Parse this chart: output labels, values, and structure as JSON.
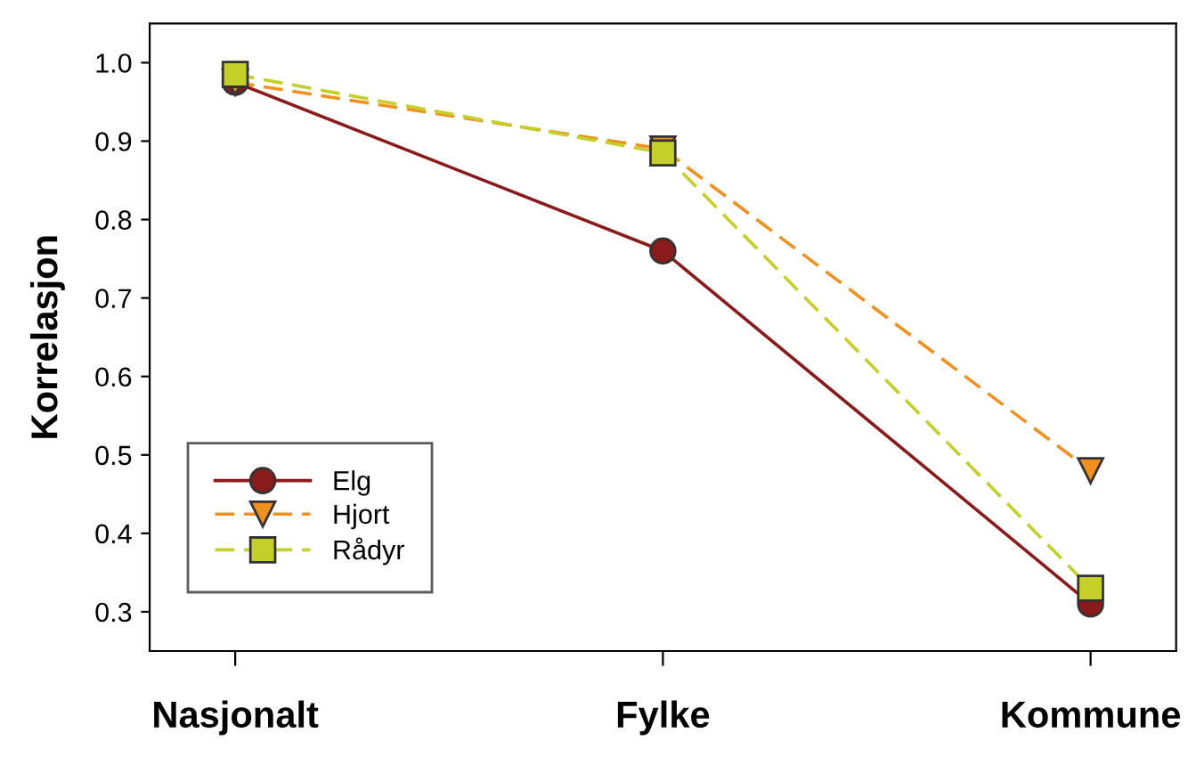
{
  "chart_data": {
    "type": "line",
    "ylabel": "Korrelasjon",
    "categories": [
      "Nasjonalt",
      "Fylke",
      "Kommune"
    ],
    "series": [
      {
        "name": "Elg",
        "color": "#8b1a1a",
        "values": [
          0.975,
          0.76,
          0.31
        ],
        "marker": "circle",
        "line_style": "solid"
      },
      {
        "name": "Hjort",
        "color": "#f0901e",
        "values": [
          0.975,
          0.89,
          0.48
        ],
        "marker": "triangle",
        "line_style": "dashed"
      },
      {
        "name": "Rådyr",
        "color": "#c5cf2a",
        "values": [
          0.985,
          0.885,
          0.33
        ],
        "marker": "square",
        "line_style": "dashed"
      }
    ],
    "ylim": [
      0.25,
      1.05
    ],
    "yticks": [
      {
        "value": 0.3,
        "label": "0.3"
      },
      {
        "value": 0.4,
        "label": "0.4"
      },
      {
        "value": 0.5,
        "label": "0.5"
      },
      {
        "value": 0.6,
        "label": "0.6"
      },
      {
        "value": 0.7,
        "label": "0.7"
      },
      {
        "value": 0.8,
        "label": "0.8"
      },
      {
        "value": 0.9,
        "label": "0.9"
      },
      {
        "value": 1.0,
        "label": "1.0"
      }
    ],
    "grid": false,
    "legend": "lower left"
  }
}
